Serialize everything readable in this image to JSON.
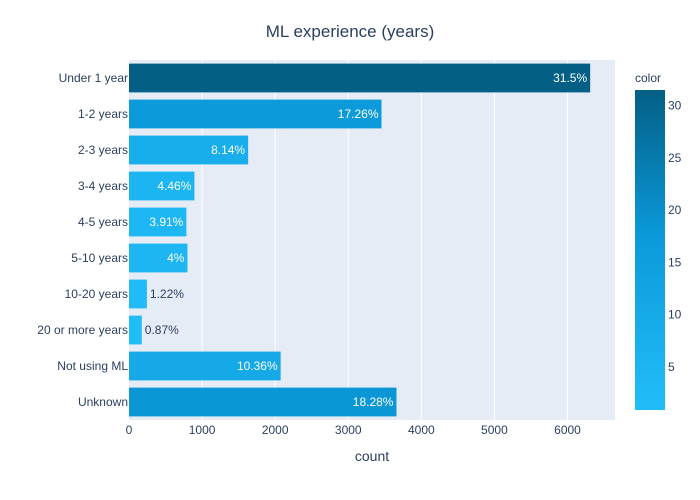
{
  "chart_data": {
    "type": "bar",
    "orientation": "horizontal",
    "title": "ML experience (years)",
    "xlabel": "count",
    "ylabel": "",
    "categories": [
      "Under 1 year",
      "1-2 years",
      "2-3 years",
      "3-4 years",
      "4-5 years",
      "5-10 years",
      "10-20 years",
      "20 or more years",
      "Not using ML",
      "Unknown"
    ],
    "values": [
      6310,
      3455,
      1630,
      895,
      785,
      800,
      245,
      175,
      2075,
      3660
    ],
    "color_values": [
      31.5,
      17.26,
      8.14,
      4.46,
      3.91,
      4,
      1.22,
      0.87,
      10.36,
      18.28
    ],
    "text_labels": [
      "31.5%",
      "17.26%",
      "8.14%",
      "4.46%",
      "3.91%",
      "4%",
      "1.22%",
      "0.87%",
      "10.36%",
      "18.28%"
    ],
    "xlim": [
      0,
      6650
    ],
    "x_ticks": [
      0,
      1000,
      2000,
      3000,
      4000,
      5000,
      6000
    ],
    "x_tick_labels": [
      "0",
      "1000",
      "2000",
      "3000",
      "4000",
      "5000",
      "6000"
    ],
    "grid": true,
    "colorbar": {
      "title": "color",
      "range": [
        0.87,
        31.5
      ],
      "ticks": [
        5,
        10,
        15,
        20,
        25,
        30
      ],
      "tick_labels": [
        "5",
        "10",
        "15",
        "20",
        "25",
        "30"
      ],
      "colors": {
        "low": "#21bdf9",
        "mid": "#0b99d9",
        "high": "#035f86"
      }
    },
    "colors": {
      "plot_background": "#e5ecf6",
      "grid": "#ffffff",
      "text": "#2a3f5f"
    }
  }
}
